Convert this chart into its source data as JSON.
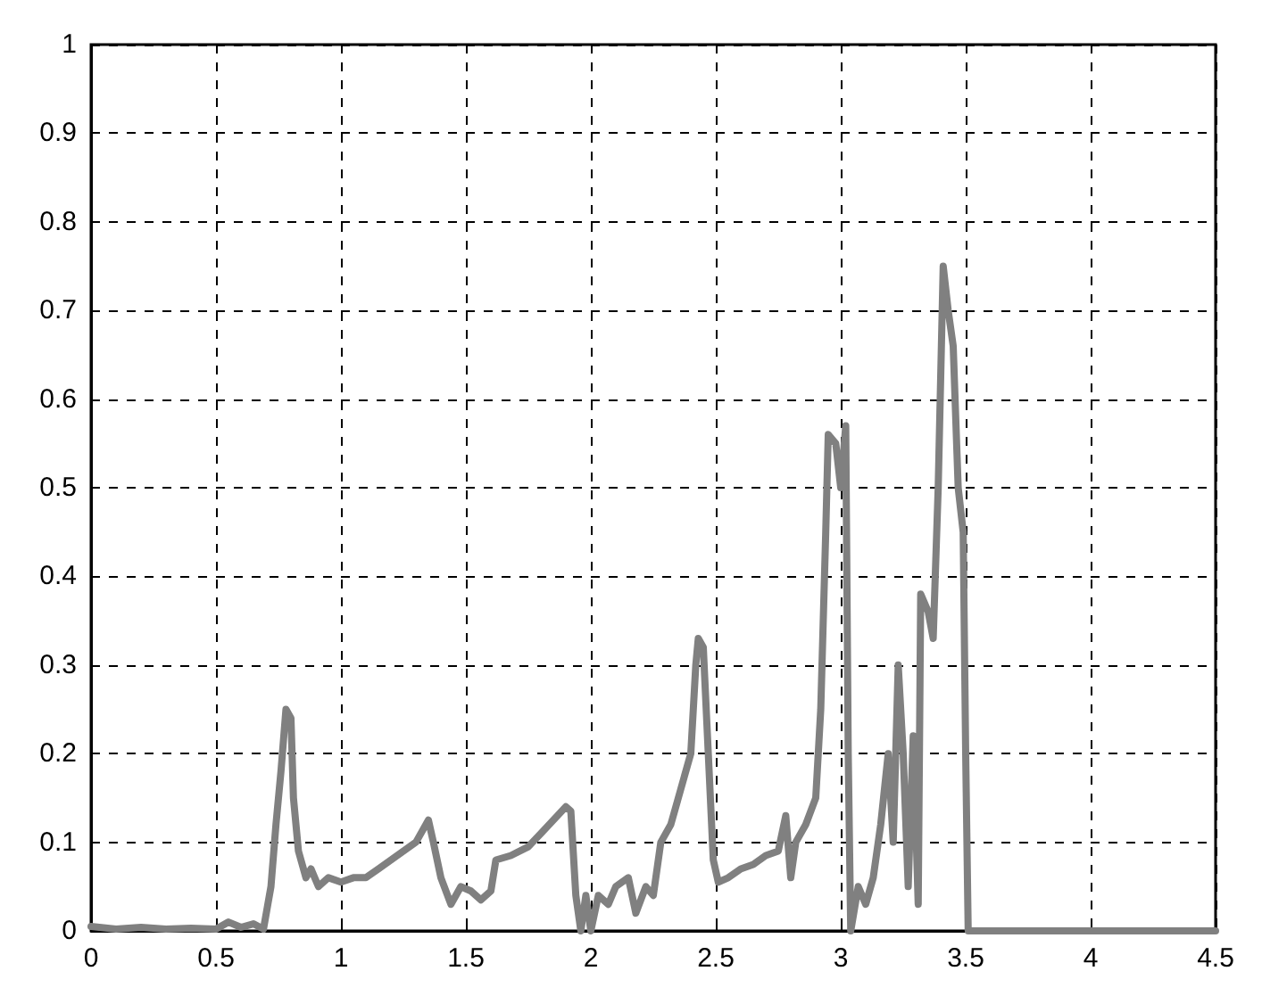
{
  "chart_data": {
    "type": "line",
    "xlim": [
      0,
      4.5
    ],
    "ylim": [
      0,
      1
    ],
    "xticks": [
      0,
      0.5,
      1,
      1.5,
      2,
      2.5,
      3,
      3.5,
      4,
      4.5
    ],
    "yticks": [
      0,
      0.1,
      0.2,
      0.3,
      0.4,
      0.5,
      0.6,
      0.7,
      0.8,
      0.9,
      1
    ],
    "grid": true,
    "marker": "none",
    "line_style": "solid",
    "series": [
      {
        "color": "#808080",
        "x": [
          0,
          0.1,
          0.2,
          0.3,
          0.4,
          0.5,
          0.55,
          0.6,
          0.65,
          0.69,
          0.72,
          0.74,
          0.76,
          0.78,
          0.8,
          0.81,
          0.83,
          0.86,
          0.88,
          0.91,
          0.95,
          1.0,
          1.05,
          1.1,
          1.15,
          1.2,
          1.25,
          1.3,
          1.35,
          1.37,
          1.4,
          1.44,
          1.48,
          1.52,
          1.56,
          1.6,
          1.62,
          1.68,
          1.75,
          1.8,
          1.85,
          1.9,
          1.92,
          1.94,
          1.96,
          1.98,
          2.0,
          2.03,
          2.07,
          2.1,
          2.15,
          2.18,
          2.22,
          2.25,
          2.28,
          2.32,
          2.36,
          2.4,
          2.42,
          2.43,
          2.45,
          2.47,
          2.49,
          2.51,
          2.55,
          2.6,
          2.65,
          2.7,
          2.75,
          2.78,
          2.8,
          2.82,
          2.86,
          2.9,
          2.92,
          2.94,
          2.95,
          2.98,
          3.0,
          3.02,
          3.03,
          3.04,
          3.07,
          3.1,
          3.13,
          3.16,
          3.19,
          3.21,
          3.23,
          3.25,
          3.27,
          3.29,
          3.31,
          3.32,
          3.35,
          3.37,
          3.39,
          3.41,
          3.43,
          3.45,
          3.47,
          3.49,
          3.5,
          3.51,
          3.6,
          4.0,
          4.5
        ],
        "values": [
          0.005,
          0.002,
          0.004,
          0.002,
          0.003,
          0.002,
          0.01,
          0.004,
          0.008,
          0.002,
          0.05,
          0.12,
          0.18,
          0.25,
          0.24,
          0.15,
          0.09,
          0.06,
          0.07,
          0.05,
          0.06,
          0.055,
          0.06,
          0.06,
          0.07,
          0.08,
          0.09,
          0.1,
          0.125,
          0.1,
          0.06,
          0.03,
          0.05,
          0.045,
          0.035,
          0.045,
          0.08,
          0.085,
          0.095,
          0.11,
          0.125,
          0.14,
          0.135,
          0.04,
          0.0,
          0.04,
          0.0,
          0.04,
          0.03,
          0.05,
          0.06,
          0.02,
          0.05,
          0.04,
          0.1,
          0.12,
          0.16,
          0.2,
          0.3,
          0.33,
          0.32,
          0.2,
          0.08,
          0.055,
          0.06,
          0.07,
          0.075,
          0.085,
          0.09,
          0.13,
          0.06,
          0.1,
          0.12,
          0.15,
          0.25,
          0.45,
          0.56,
          0.55,
          0.5,
          0.57,
          0.2,
          0.0,
          0.05,
          0.03,
          0.06,
          0.12,
          0.2,
          0.1,
          0.3,
          0.2,
          0.05,
          0.22,
          0.03,
          0.38,
          0.36,
          0.33,
          0.5,
          0.75,
          0.7,
          0.66,
          0.5,
          0.45,
          0.2,
          0.0,
          0.0,
          0.0,
          0.0
        ]
      }
    ]
  }
}
